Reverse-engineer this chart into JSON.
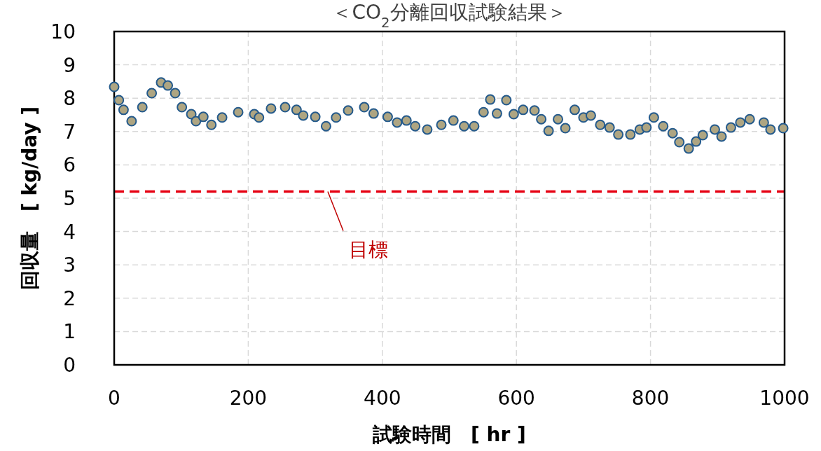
{
  "chart_data": {
    "type": "scatter",
    "title": "＜CO$_{2}$分離回収試験結果＞",
    "xlabel": "試験時間　[ hr ]",
    "ylabel": "回収量　[ kg/day ]",
    "xlim": [
      0,
      1000
    ],
    "xticks": [
      0,
      200,
      400,
      600,
      800,
      1000
    ],
    "ylim": [
      0,
      10
    ],
    "yticks": [
      0,
      1,
      2,
      3,
      4,
      5,
      6,
      7,
      8,
      9,
      10
    ],
    "grid": true,
    "marker": "circle",
    "ref_lines": [
      {
        "axis": "y",
        "value": 5.2,
        "label": "目標",
        "color": "#e60012",
        "line_style": "dashed"
      }
    ],
    "series": [
      {
        "color": "#aea582",
        "x": [
          0,
          7,
          14,
          26,
          42,
          56,
          70,
          80,
          91,
          101,
          115,
          122,
          133,
          145,
          161,
          185,
          209,
          216,
          234,
          255,
          272,
          282,
          300,
          316,
          331,
          349,
          373,
          387,
          408,
          422,
          436,
          449,
          467,
          488,
          506,
          522,
          537,
          551,
          561,
          571,
          585,
          596,
          610,
          627,
          637,
          648,
          662,
          673,
          687,
          700,
          711,
          725,
          739,
          752,
          770,
          784,
          794,
          805,
          819,
          833,
          843,
          857,
          868,
          878,
          896,
          906,
          920,
          934,
          948,
          969,
          979,
          998
        ],
        "values": [
          8.34,
          7.94,
          7.65,
          7.31,
          7.73,
          8.15,
          8.47,
          8.38,
          8.15,
          7.73,
          7.52,
          7.31,
          7.44,
          7.2,
          7.42,
          7.58,
          7.52,
          7.42,
          7.69,
          7.73,
          7.65,
          7.48,
          7.44,
          7.16,
          7.42,
          7.63,
          7.73,
          7.54,
          7.44,
          7.27,
          7.33,
          7.16,
          7.06,
          7.2,
          7.33,
          7.16,
          7.16,
          7.58,
          7.96,
          7.54,
          7.94,
          7.52,
          7.65,
          7.63,
          7.37,
          7.02,
          7.37,
          7.1,
          7.65,
          7.42,
          7.48,
          7.2,
          7.12,
          6.91,
          6.91,
          7.06,
          7.12,
          7.42,
          7.16,
          6.95,
          6.68,
          6.49,
          6.7,
          6.89,
          7.06,
          6.85,
          7.12,
          7.27,
          7.37,
          7.27,
          7.06,
          7.1
        ]
      }
    ]
  }
}
